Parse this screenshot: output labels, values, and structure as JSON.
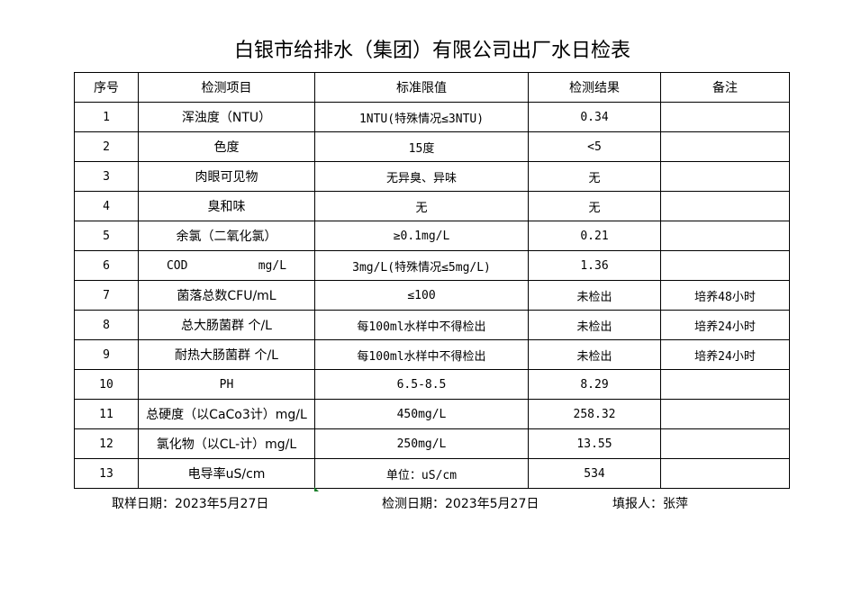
{
  "title": "白银市给排水（集团）有限公司出厂水日检表",
  "headers": [
    "序号",
    "检测项目",
    "标准限值",
    "检测结果",
    "备注"
  ],
  "rows": [
    [
      "1",
      "浑浊度（NTU）",
      "1NTU(特殊情况≤3NTU)",
      "0.34",
      ""
    ],
    [
      "2",
      "色度",
      "15度",
      "<5",
      ""
    ],
    [
      "3",
      "肉眼可见物",
      "无异臭、异味",
      "无",
      ""
    ],
    [
      "4",
      "臭和味",
      "无",
      "无",
      ""
    ],
    [
      "5",
      "余氯（二氧化氯）",
      "≥0.1mg/L",
      "0.21",
      ""
    ],
    [
      "6",
      "COD          mg/L",
      "3mg/L(特殊情况≤5mg/L)",
      "1.36",
      ""
    ],
    [
      "7",
      "菌落总数CFU/mL",
      "≤100",
      "未检出",
      "培养48小时"
    ],
    [
      "8",
      "总大肠菌群 个/L",
      "每100ml水样中不得检出",
      "未检出",
      "培养24小时"
    ],
    [
      "9",
      "耐热大肠菌群 个/L",
      "每100ml水样中不得检出",
      "未检出",
      "培养24小时"
    ],
    [
      "10",
      "PH",
      "6.5-8.5",
      "8.29",
      ""
    ],
    [
      "11",
      "总硬度（以CaCo3计）mg/L",
      "450mg/L",
      "258.32",
      ""
    ],
    [
      "12",
      "氯化物（以CL-计）mg/L",
      "250mg/L",
      "13.55",
      ""
    ],
    [
      "13",
      "电导率uS/cm",
      "单位：uS/cm",
      "534",
      ""
    ]
  ],
  "footer": {
    "sampling_date": "取样日期：2023年5月27日",
    "test_date": "检测日期：2023年5月27日",
    "reporter": "填报人：张萍"
  }
}
